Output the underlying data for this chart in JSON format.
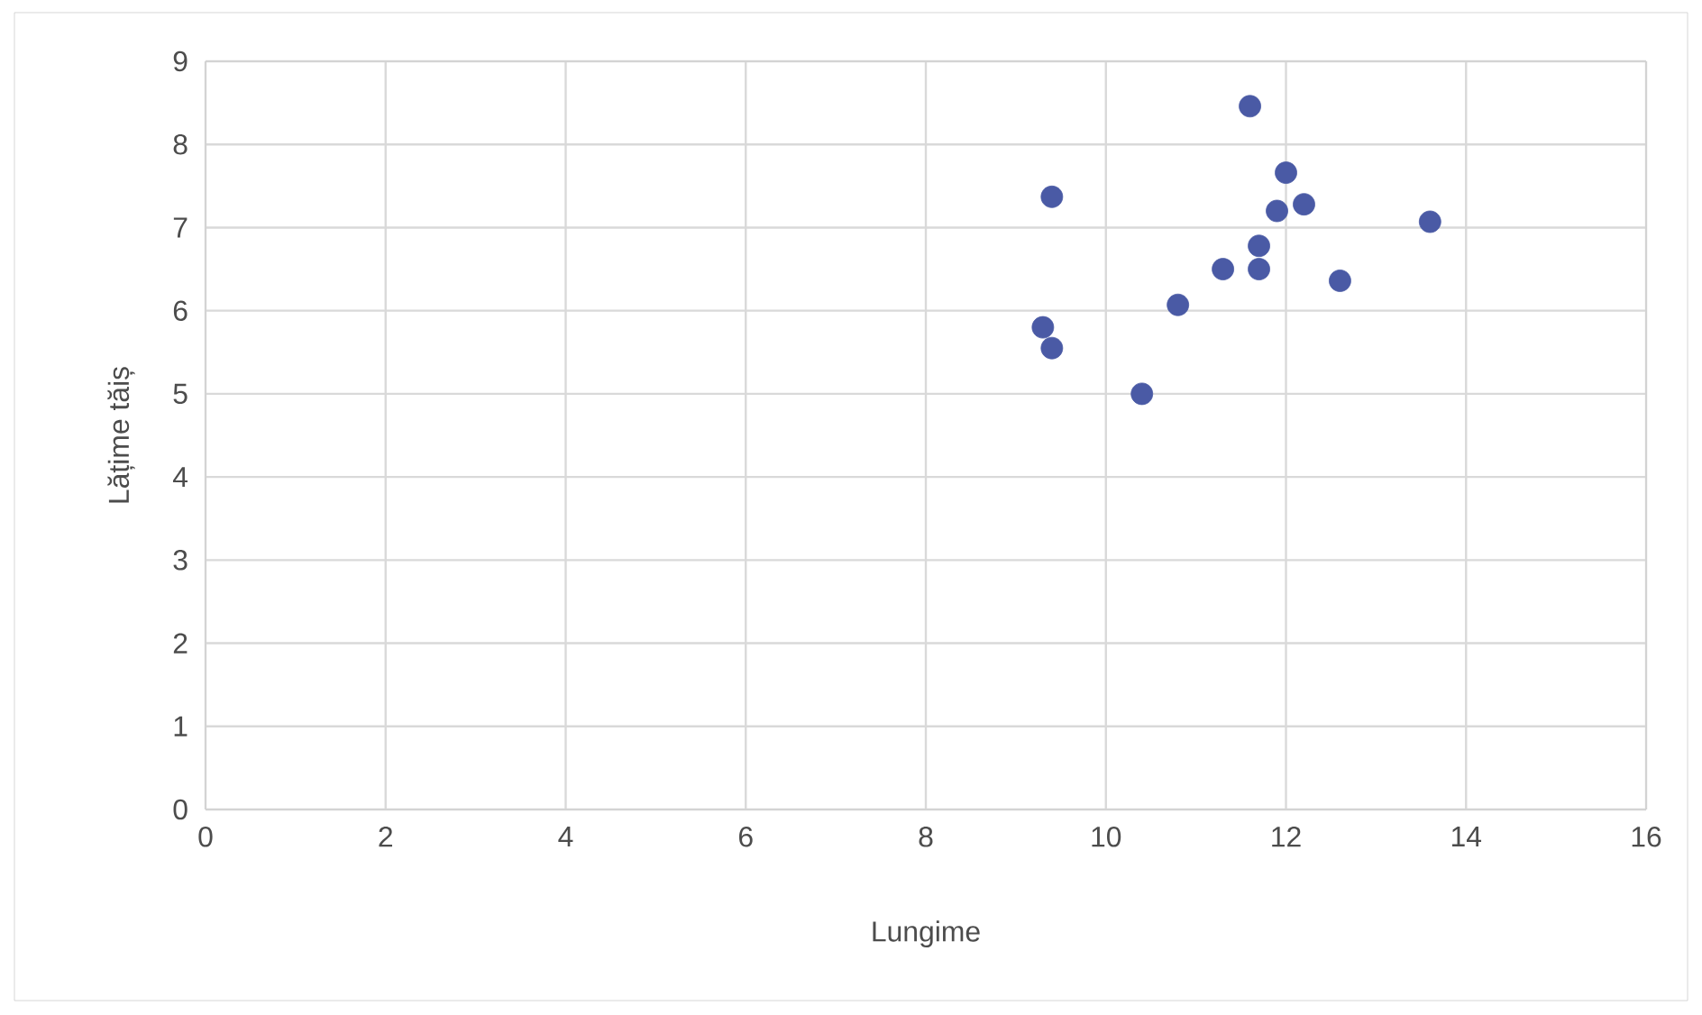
{
  "chart_data": {
    "type": "scatter",
    "xlabel": "Lungime",
    "ylabel": "Lățime tăiș",
    "x": [
      9.3,
      9.4,
      9.4,
      10.4,
      10.8,
      11.3,
      11.7,
      11.7,
      11.6,
      11.9,
      12.0,
      12.2,
      12.6,
      13.6
    ],
    "values": [
      5.8,
      5.55,
      7.37,
      5.0,
      6.07,
      6.5,
      6.5,
      6.78,
      8.46,
      7.2,
      7.66,
      7.28,
      6.36,
      7.07
    ],
    "color": "#4a5aa5",
    "xlim": [
      0,
      16
    ],
    "ylim": [
      0,
      9
    ],
    "xticks": [
      0,
      2,
      4,
      6,
      8,
      10,
      12,
      14,
      16
    ],
    "yticks": [
      0,
      1,
      2,
      3,
      4,
      5,
      6,
      7,
      8,
      9
    ],
    "grid": true
  }
}
